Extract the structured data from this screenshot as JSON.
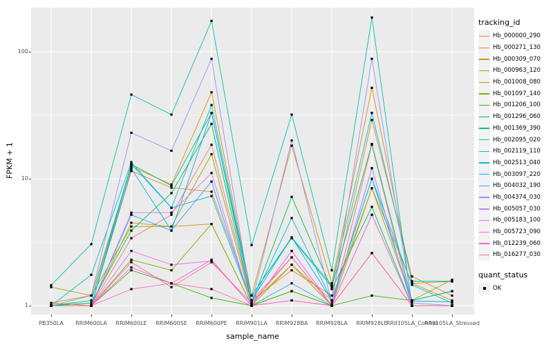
{
  "figure": {
    "background": "#FFFFFF",
    "panel_background": "#EBEBEB",
    "grid_color": "#FFFFFF",
    "tick_label_color": "#4D4D4D",
    "point_color": "#000000"
  },
  "axes": {
    "x_title": "sample_name",
    "y_title": "FPKM + 1",
    "y_tick_labels": [
      "1",
      "10",
      "100"
    ]
  },
  "legend": {
    "tracking_title": "tracking_id",
    "quant_title": "quant_status",
    "quant_ok_label": "OK"
  },
  "chart_data": {
    "type": "line",
    "title": "",
    "xlabel": "sample_name",
    "ylabel": "FPKM + 1",
    "y_scale": "log10",
    "ylim": [
      1,
      200
    ],
    "y_ticks": [
      1,
      10,
      100
    ],
    "grid": true,
    "legend_position": "right",
    "point_marker": "filled-square-black",
    "categories": [
      "PB350LA",
      "RRIM600LA",
      "RRIM600LE",
      "RRIM600SE",
      "RRIM600PE",
      "RRIM901LA",
      "RRIM928BA",
      "RRIM928LA",
      "RRIM928LE",
      "RRII105LA_Control",
      "RRII105LA_Stressed"
    ],
    "quant_status": "OK",
    "series": [
      {
        "name": "Hb_000000_290",
        "color": "#F8766D",
        "values": [
          1.0,
          1.0,
          3.4,
          5.2,
          18.5,
          1.1,
          2.4,
          1.0,
          18.5,
          1.0,
          1.0
        ]
      },
      {
        "name": "Hb_000271_130",
        "color": "#EA8331",
        "values": [
          1.05,
          1.0,
          11.5,
          8.5,
          7.9,
          1.1,
          1.9,
          1.2,
          29.0,
          1.7,
          1.2
        ]
      },
      {
        "name": "Hb_000309_070",
        "color": "#D89000",
        "values": [
          1.05,
          1.2,
          12.5,
          9.0,
          48.0,
          1.2,
          18.2,
          1.5,
          52.0,
          1.5,
          1.1
        ]
      },
      {
        "name": "Hb_000963_120",
        "color": "#C09B00",
        "values": [
          1.0,
          1.0,
          4.5,
          4.2,
          4.4,
          1.0,
          2.1,
          1.0,
          8.4,
          1.5,
          1.55
        ]
      },
      {
        "name": "Hb_001008_080",
        "color": "#A3A500",
        "values": [
          1.4,
          1.2,
          4.2,
          4.2,
          15.6,
          1.05,
          2.1,
          1.1,
          8.4,
          1.1,
          1.6
        ]
      },
      {
        "name": "Hb_001097_140",
        "color": "#7CAE00",
        "values": [
          1.0,
          1.0,
          2.3,
          1.9,
          4.4,
          1.0,
          1.3,
          1.0,
          5.2,
          1.0,
          1.0
        ]
      },
      {
        "name": "Hb_001206_100",
        "color": "#39B600",
        "values": [
          1.0,
          1.0,
          1.9,
          1.5,
          1.15,
          1.0,
          1.3,
          1.0,
          1.2,
          1.1,
          1.3
        ]
      },
      {
        "name": "Hb_001296_060",
        "color": "#00BB4E",
        "values": [
          1.0,
          1.05,
          3.9,
          7.7,
          27.0,
          1.05,
          7.2,
          1.35,
          6.0,
          1.0,
          1.0
        ]
      },
      {
        "name": "Hb_001369_390",
        "color": "#00BF7D",
        "values": [
          1.0,
          1.1,
          13.0,
          8.8,
          33.0,
          1.2,
          3.4,
          1.4,
          18.8,
          1.1,
          1.3
        ]
      },
      {
        "name": "Hb_002095_020",
        "color": "#00C1A3",
        "values": [
          1.45,
          3.05,
          46.0,
          32.0,
          175.0,
          3.0,
          32.0,
          1.9,
          186.0,
          1.0,
          1.0
        ]
      },
      {
        "name": "Hb_002119_110",
        "color": "#00BFC4",
        "values": [
          1.0,
          1.75,
          13.5,
          5.9,
          38.0,
          1.2,
          3.45,
          1.45,
          33.0,
          1.56,
          1.56
        ]
      },
      {
        "name": "Hb_002513_040",
        "color": "#00BAE0",
        "values": [
          1.0,
          1.0,
          13.0,
          5.9,
          7.3,
          1.05,
          4.9,
          1.1,
          10.0,
          1.46,
          1.05
        ]
      },
      {
        "name": "Hb_003097_220",
        "color": "#00B0F6",
        "values": [
          1.0,
          1.0,
          12.0,
          3.9,
          33.0,
          1.1,
          3.45,
          1.1,
          10.0,
          1.09,
          1.07
        ]
      },
      {
        "name": "Hb_004032_190",
        "color": "#35A2FF",
        "values": [
          1.0,
          1.0,
          5.2,
          3.9,
          9.5,
          1.0,
          1.5,
          1.0,
          12.1,
          1.0,
          1.0
        ]
      },
      {
        "name": "Hb_004374_030",
        "color": "#9590FF",
        "values": [
          1.0,
          1.2,
          23.0,
          16.6,
          88.0,
          1.05,
          20.0,
          1.05,
          88.0,
          1.05,
          1.0
        ]
      },
      {
        "name": "Hb_005057_030",
        "color": "#C77CFF",
        "values": [
          1.0,
          1.0,
          5.4,
          5.4,
          11.1,
          1.0,
          2.7,
          1.0,
          12.1,
          1.0,
          1.0
        ]
      },
      {
        "name": "Hb_005183_100",
        "color": "#E76BF3",
        "values": [
          1.0,
          1.0,
          2.7,
          2.1,
          2.25,
          1.0,
          2.7,
          1.0,
          5.2,
          1.0,
          1.0
        ]
      },
      {
        "name": "Hb_005723_090",
        "color": "#FA62DB",
        "values": [
          1.0,
          1.0,
          2.0,
          1.5,
          2.3,
          1.0,
          1.1,
          1.0,
          2.6,
          1.0,
          1.0
        ]
      },
      {
        "name": "Hb_012239_060",
        "color": "#FF62BC",
        "values": [
          1.0,
          1.0,
          1.35,
          1.5,
          1.35,
          1.0,
          1.1,
          1.0,
          2.6,
          1.0,
          1.0
        ]
      },
      {
        "name": "Hb_016277_030",
        "color": "#FF6A98",
        "values": [
          1.0,
          1.0,
          2.2,
          1.4,
          2.2,
          1.05,
          2.4,
          1.0,
          2.6,
          1.0,
          1.0
        ]
      }
    ]
  }
}
